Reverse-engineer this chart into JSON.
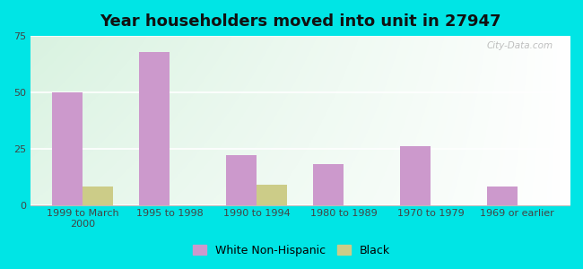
{
  "title": "Year householders moved into unit in 27947",
  "categories": [
    "1999 to March\n2000",
    "1995 to 1998",
    "1990 to 1994",
    "1980 to 1989",
    "1970 to 1979",
    "1969 or earlier"
  ],
  "white_values": [
    50,
    68,
    22,
    18,
    26,
    8
  ],
  "black_values": [
    8,
    0,
    9,
    0,
    0,
    0
  ],
  "white_color": "#cc99cc",
  "black_color": "#cccc88",
  "ylim": [
    0,
    75
  ],
  "yticks": [
    0,
    25,
    50,
    75
  ],
  "bg_outer": "#00e5e5",
  "title_fontsize": 13,
  "tick_fontsize": 8,
  "legend_fontsize": 9,
  "bar_width": 0.35,
  "watermark": "City-Data.com"
}
